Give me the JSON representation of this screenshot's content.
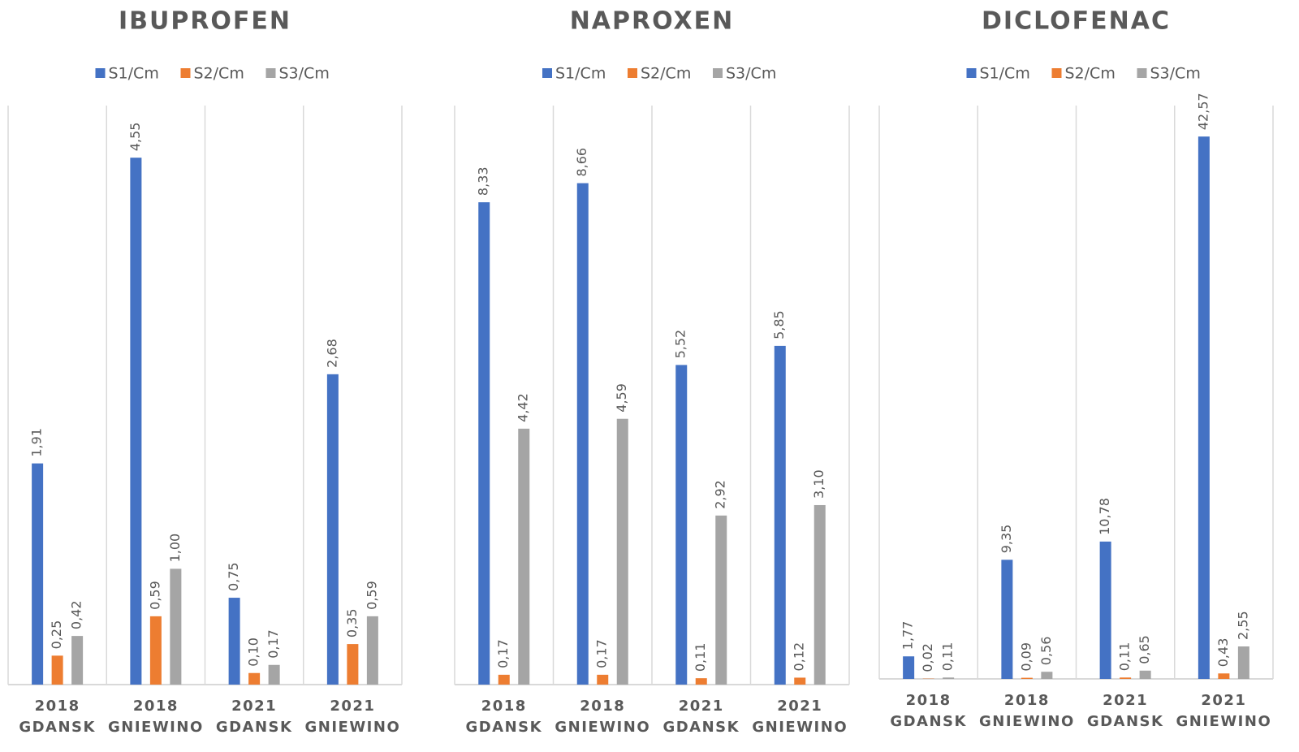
{
  "chart_data": [
    {
      "type": "bar",
      "title": "IBUPROFEN",
      "categories": [
        [
          "2018",
          "GDANSK"
        ],
        [
          "2018",
          "GNIEWINO"
        ],
        [
          "2021",
          "GDANSK"
        ],
        [
          "2021",
          "GNIEWINO"
        ]
      ],
      "series": [
        {
          "name": "S1/Cm",
          "color": "#4472c4",
          "values": [
            1.91,
            4.55,
            0.75,
            2.68
          ],
          "value_labels": [
            "1,91",
            "4,55",
            "0,75",
            "2,68"
          ]
        },
        {
          "name": "S2/Cm",
          "color": "#ed7d31",
          "values": [
            0.25,
            0.59,
            0.1,
            0.35
          ],
          "value_labels": [
            "0,25",
            "0,59",
            "0,10",
            "0,35"
          ]
        },
        {
          "name": "S3/Cm",
          "color": "#a5a5a5",
          "values": [
            0.42,
            1.0,
            0.17,
            0.59
          ],
          "value_labels": [
            "0,42",
            "1,00",
            "0,17",
            "0,59"
          ]
        }
      ],
      "ylim": [
        0,
        5
      ]
    },
    {
      "type": "bar",
      "title": "NAPROXEN",
      "categories": [
        [
          "2018",
          "GDANSK"
        ],
        [
          "2018",
          "GNIEWINO"
        ],
        [
          "2021",
          "GDANSK"
        ],
        [
          "2021",
          "GNIEWINO"
        ]
      ],
      "series": [
        {
          "name": "S1/Cm",
          "color": "#4472c4",
          "values": [
            8.33,
            8.66,
            5.52,
            5.85
          ],
          "value_labels": [
            "8,33",
            "8,66",
            "5,52",
            "5,85"
          ]
        },
        {
          "name": "S2/Cm",
          "color": "#ed7d31",
          "values": [
            0.17,
            0.17,
            0.11,
            0.12
          ],
          "value_labels": [
            "0,17",
            "0,17",
            "0,11",
            "0,12"
          ]
        },
        {
          "name": "S3/Cm",
          "color": "#a5a5a5",
          "values": [
            4.42,
            4.59,
            2.92,
            3.1
          ],
          "value_labels": [
            "4,42",
            "4,59",
            "2,92",
            "3,10"
          ]
        }
      ],
      "ylim": [
        0,
        10
      ]
    },
    {
      "type": "bar",
      "title": "DICLOFENAC",
      "categories": [
        [
          "2018",
          "GDANSK"
        ],
        [
          "2018",
          "GNIEWINO"
        ],
        [
          "2021",
          "GDANSK"
        ],
        [
          "2021",
          "GNIEWINO"
        ]
      ],
      "series": [
        {
          "name": "S1/Cm",
          "color": "#4472c4",
          "values": [
            1.77,
            9.35,
            10.78,
            42.57
          ],
          "value_labels": [
            "1,77",
            "9,35",
            "10,78",
            "42,57"
          ]
        },
        {
          "name": "S2/Cm",
          "color": "#ed7d31",
          "values": [
            0.02,
            0.09,
            0.11,
            0.43
          ],
          "value_labels": [
            "0,02",
            "0,09",
            "0,11",
            "0,43"
          ]
        },
        {
          "name": "S3/Cm",
          "color": "#a5a5a5",
          "values": [
            0.11,
            0.56,
            0.65,
            2.55
          ],
          "value_labels": [
            "0,11",
            "0,56",
            "0,65",
            "2,55"
          ]
        }
      ],
      "ylim": [
        0,
        45
      ]
    }
  ]
}
